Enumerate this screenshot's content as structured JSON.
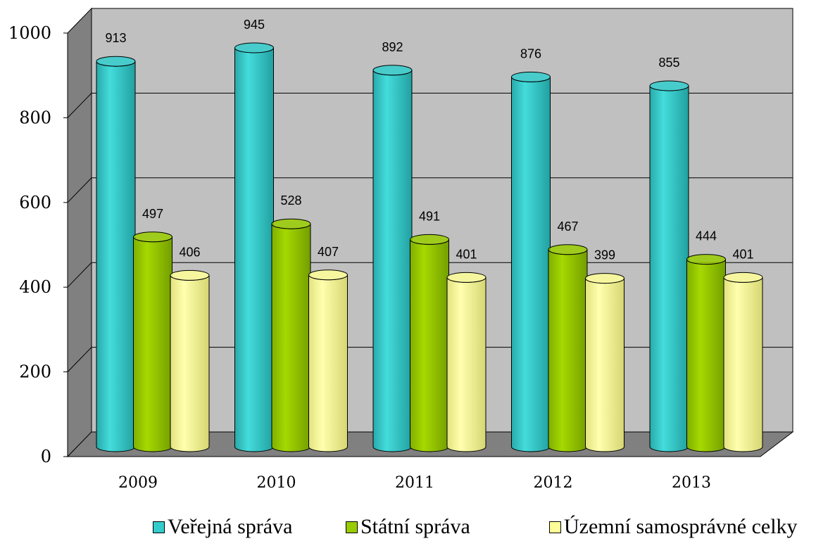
{
  "chart_data": {
    "type": "bar",
    "categories": [
      "2009",
      "2010",
      "2011",
      "2012",
      "2013"
    ],
    "series": [
      {
        "name": "Veřejná správa",
        "values": [
          913,
          945,
          892,
          876,
          855
        ],
        "color": "#33CCCC"
      },
      {
        "name": "Státní správa",
        "values": [
          497,
          528,
          491,
          467,
          444
        ],
        "color": "#99CC00"
      },
      {
        "name": "Územní samosprávné celky",
        "values": [
          406,
          407,
          401,
          399,
          401
        ],
        "color": "#FFFF99"
      }
    ],
    "y_ticks": [
      "0",
      "200",
      "400",
      "600",
      "800",
      "1000"
    ],
    "ylim": [
      0,
      1000
    ],
    "grid": true,
    "legend_position": "bottom",
    "style": "3d-cylinder"
  }
}
